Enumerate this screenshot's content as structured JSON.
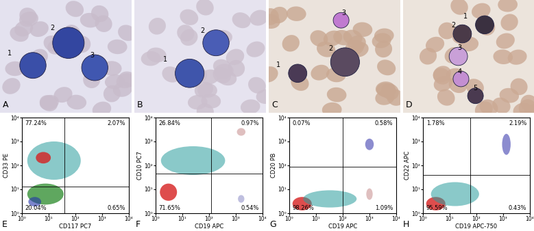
{
  "images": [
    {
      "panel": "A",
      "cell_labels": [
        "1",
        "2",
        "3"
      ]
    },
    {
      "panel": "B",
      "cell_labels": [
        "1",
        "2"
      ]
    },
    {
      "panel": "C",
      "cell_labels": [
        "1",
        "2",
        "3"
      ]
    },
    {
      "panel": "D",
      "cell_labels": [
        "1",
        "2",
        "3",
        "4",
        "5"
      ]
    }
  ],
  "chart_data": [
    {
      "type": "scatter",
      "panel": "E",
      "x_label": "CD117 PC7",
      "y_label": "CD33 PE",
      "log": true,
      "xlim": [
        1,
        10000
      ],
      "ylim": [
        1,
        10000
      ],
      "xticks": [
        {
          "value": 1,
          "label": "10⁰"
        },
        {
          "value": 10,
          "label": "10¹"
        },
        {
          "value": 100,
          "label": "10²"
        },
        {
          "value": 1000,
          "label": "10³"
        },
        {
          "value": 10000,
          "label": "10⁴"
        }
      ],
      "yticks": [
        {
          "value": 1,
          "label": "10⁰"
        },
        {
          "value": 10,
          "label": "10¹"
        },
        {
          "value": 100,
          "label": "10²"
        },
        {
          "value": 1000,
          "label": "10³"
        },
        {
          "value": 10000,
          "label": "10⁴"
        }
      ],
      "gate": {
        "x": 40,
        "y": 13
      },
      "quadrants": {
        "upper_left": {
          "value": 77.24,
          "label": "77.24%"
        },
        "upper_right": {
          "value": 2.07,
          "label": "2.07%"
        },
        "lower_left": {
          "value": 20.04,
          "label": "20.04%"
        },
        "lower_right": {
          "value": 0.65,
          "label": "0.65%"
        }
      }
    },
    {
      "type": "scatter",
      "panel": "F",
      "x_label": "CD19 APC",
      "y_label": "CD10 PC7",
      "log": true,
      "xlim": [
        1,
        10000
      ],
      "ylim": [
        1,
        10000
      ],
      "xticks": [
        {
          "value": 1,
          "label": "10⁰"
        },
        {
          "value": 10,
          "label": "10¹"
        },
        {
          "value": 100,
          "label": "10²"
        },
        {
          "value": 1000,
          "label": "10³"
        },
        {
          "value": 10000,
          "label": "10⁴"
        }
      ],
      "yticks": [
        {
          "value": 1,
          "label": "10⁰"
        },
        {
          "value": 10,
          "label": "10¹"
        },
        {
          "value": 100,
          "label": "10²"
        },
        {
          "value": 1000,
          "label": "10³"
        },
        {
          "value": 10000,
          "label": "10⁴"
        }
      ],
      "gate": {
        "x": 120,
        "y": 45
      },
      "quadrants": {
        "upper_left": {
          "value": 26.84,
          "label": "26.84%"
        },
        "upper_right": {
          "value": 0.97,
          "label": "0.97%"
        },
        "lower_left": {
          "value": 71.65,
          "label": "71.65%"
        },
        "lower_right": {
          "value": 0.54,
          "label": "0.54%"
        }
      }
    },
    {
      "type": "scatter",
      "panel": "G",
      "x_label": "CD19 APC",
      "y_label": "CD20 PB",
      "log": true,
      "xlim": [
        1,
        10000
      ],
      "ylim": [
        1,
        10000
      ],
      "xticks": [
        {
          "value": 1,
          "label": "10⁰"
        },
        {
          "value": 10,
          "label": "10¹"
        },
        {
          "value": 100,
          "label": "10²"
        },
        {
          "value": 1000,
          "label": "10³"
        },
        {
          "value": 10000,
          "label": "10⁴"
        }
      ],
      "yticks": [
        {
          "value": 1,
          "label": "10⁰"
        },
        {
          "value": 10,
          "label": "10¹"
        },
        {
          "value": 100,
          "label": "10²"
        },
        {
          "value": 1000,
          "label": "10³"
        },
        {
          "value": 10000,
          "label": "10⁴"
        }
      ],
      "gate": {
        "x": 100,
        "y": 90
      },
      "quadrants": {
        "upper_left": {
          "value": 0.07,
          "label": "0.07%"
        },
        "upper_right": {
          "value": 0.58,
          "label": "0.58%"
        },
        "lower_left": {
          "value": 98.26,
          "label": "98.26%"
        },
        "lower_right": {
          "value": 1.09,
          "label": "1.09%"
        }
      }
    },
    {
      "type": "scatter",
      "panel": "H",
      "x_label": "CD19 APC-750",
      "y_label": "CD22 APC",
      "log": true,
      "xlim": [
        1,
        10000
      ],
      "ylim": [
        1,
        10000
      ],
      "xticks": [
        {
          "value": 1,
          "label": "10⁰"
        },
        {
          "value": 10,
          "label": "10¹"
        },
        {
          "value": 100,
          "label": "10²"
        },
        {
          "value": 1000,
          "label": "10³"
        },
        {
          "value": 10000,
          "label": "10⁴"
        }
      ],
      "yticks": [
        {
          "value": 1,
          "label": "10⁰"
        },
        {
          "value": 10,
          "label": "10¹"
        },
        {
          "value": 100,
          "label": "10²"
        },
        {
          "value": 1000,
          "label": "10³"
        },
        {
          "value": 10000,
          "label": "10⁴"
        }
      ],
      "gate": {
        "x": 60,
        "y": 40
      },
      "quadrants": {
        "upper_left": {
          "value": 1.78,
          "label": "1.78%"
        },
        "upper_right": {
          "value": 2.19,
          "label": "2.19%"
        },
        "lower_left": {
          "value": 95.59,
          "label": "95.59%"
        },
        "lower_right": {
          "value": 0.43,
          "label": "0.43%"
        }
      }
    }
  ]
}
